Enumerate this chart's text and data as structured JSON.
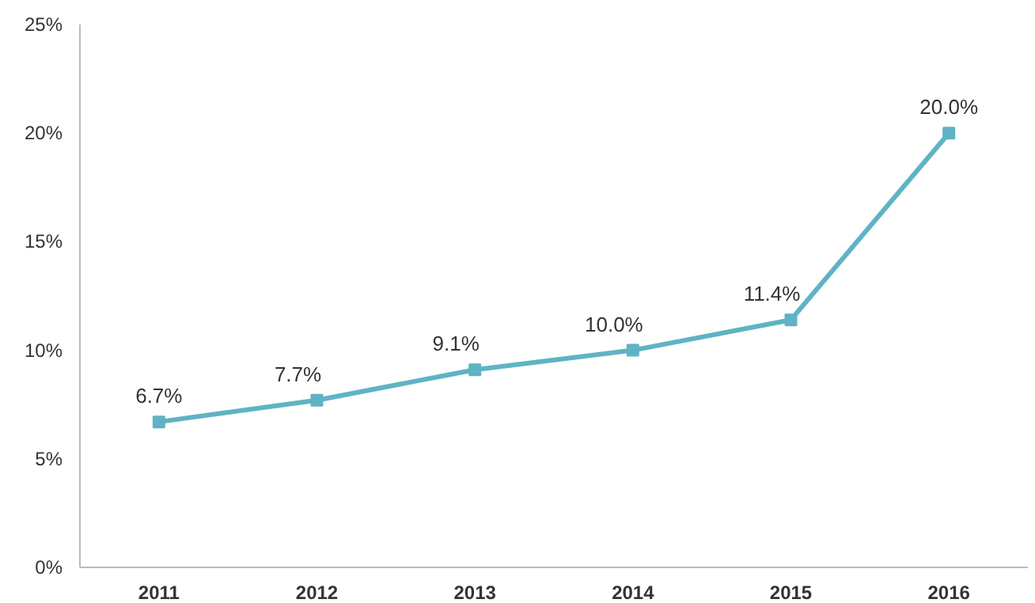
{
  "chart_data": {
    "type": "line",
    "categories": [
      "2011",
      "2012",
      "2013",
      "2014",
      "2015",
      "2016"
    ],
    "series": [
      {
        "color": "#5fb3c4",
        "values": [
          6.7,
          7.7,
          9.1,
          10.0,
          11.4,
          20.0
        ],
        "value_labels": [
          "6.7%",
          "7.7%",
          "9.1%",
          "10.0%",
          "11.4%",
          "20.0%"
        ]
      }
    ],
    "ylim": [
      0,
      25
    ],
    "yticks": [
      {
        "value": 0,
        "label": "0%"
      },
      {
        "value": 5,
        "label": "5%"
      },
      {
        "value": 10,
        "label": "10%"
      },
      {
        "value": 15,
        "label": "15%"
      },
      {
        "value": 20,
        "label": "20%"
      },
      {
        "value": 25,
        "label": "25%"
      }
    ],
    "grid": false,
    "marker": "square",
    "line_style": "solid"
  }
}
